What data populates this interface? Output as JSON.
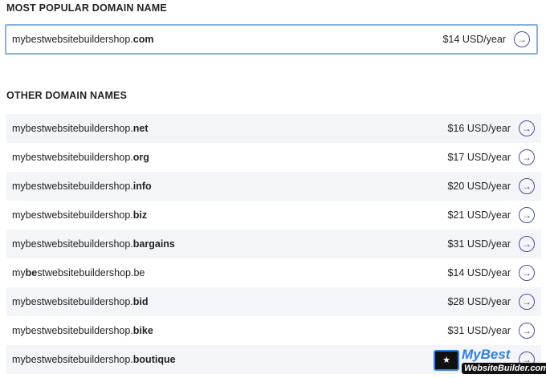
{
  "popular": {
    "heading": "MOST POPULAR DOMAIN NAME",
    "domain": {
      "pre": "mybestwebsitebuildershop.",
      "bold": "com",
      "post": ""
    },
    "price": "$14 USD/year"
  },
  "other": {
    "heading": "OTHER DOMAIN NAMES",
    "items": [
      {
        "pre": "mybestwebsitebuildershop.",
        "bold": "net",
        "post": "",
        "price": "$16 USD/year"
      },
      {
        "pre": "mybestwebsitebuildershop.",
        "bold": "org",
        "post": "",
        "price": "$17 USD/year"
      },
      {
        "pre": "mybestwebsitebuildershop.",
        "bold": "info",
        "post": "",
        "price": "$20 USD/year"
      },
      {
        "pre": "mybestwebsitebuildershop.",
        "bold": "biz",
        "post": "",
        "price": "$21 USD/year"
      },
      {
        "pre": "mybestwebsitebuildershop.",
        "bold": "bargains",
        "post": "",
        "price": "$31 USD/year"
      },
      {
        "pre": "my",
        "bold": "be",
        "post": "stwebsitebuildershop.be",
        "price": "$14 USD/year"
      },
      {
        "pre": "mybestwebsitebuildershop.",
        "bold": "bid",
        "post": "",
        "price": "$28 USD/year"
      },
      {
        "pre": "mybestwebsitebuildershop.",
        "bold": "bike",
        "post": "",
        "price": "$31 USD/year"
      },
      {
        "pre": "mybestwebsitebuildershop.",
        "bold": "boutique",
        "post": "",
        "price": ""
      }
    ]
  },
  "icons": {
    "select": "arrow-right-circle-icon"
  },
  "colors": {
    "accent": "#4b4f97",
    "highlight_border": "#7fb5e6",
    "stripe": "#f4f5f8"
  },
  "watermark": {
    "line1": "MyBest",
    "line2": "WebsiteBuilder.com"
  }
}
